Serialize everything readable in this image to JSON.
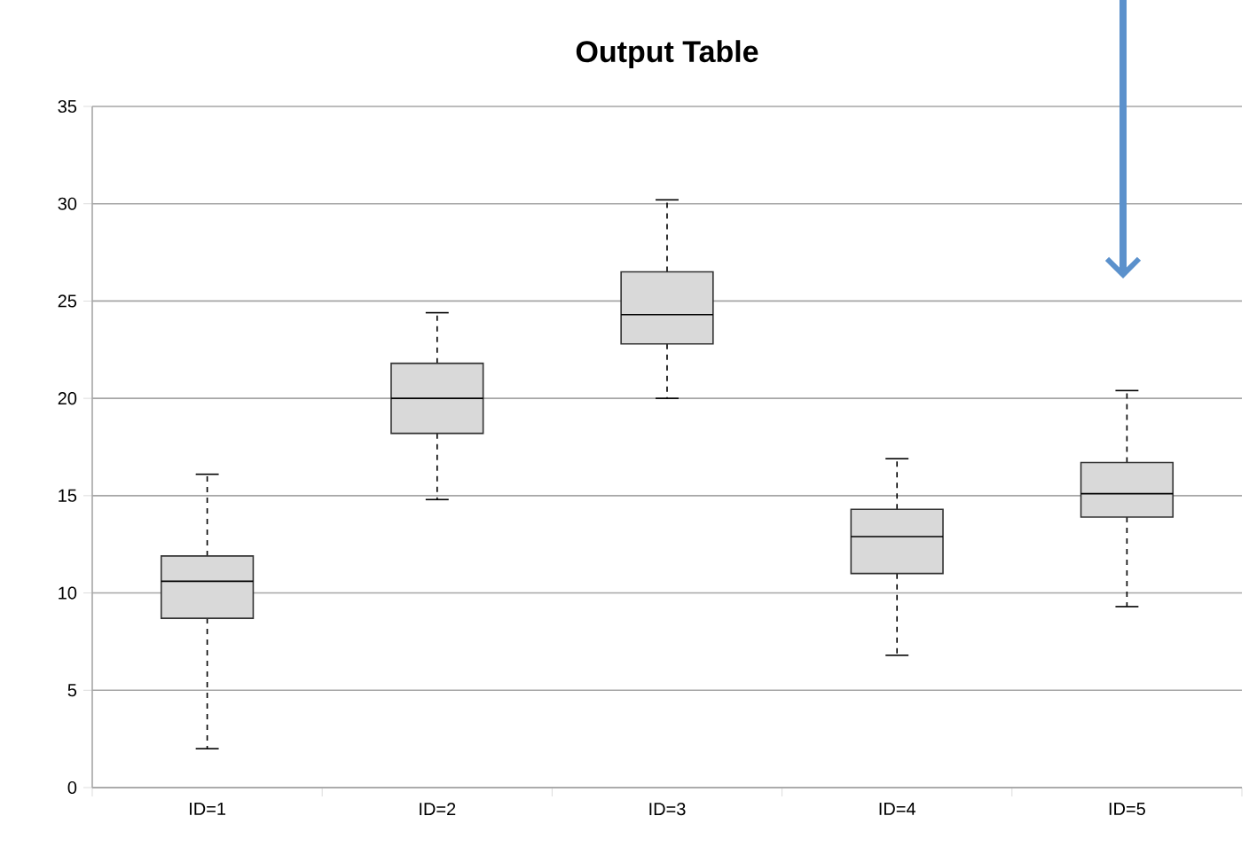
{
  "chart_data": {
    "type": "box",
    "title": "Output Table",
    "categories": [
      "ID=1",
      "ID=2",
      "ID=3",
      "ID=4",
      "ID=5"
    ],
    "boxes": [
      {
        "low": 2.0,
        "q1": 8.7,
        "median": 10.6,
        "q3": 11.9,
        "high": 16.1
      },
      {
        "low": 14.8,
        "q1": 18.2,
        "median": 20.0,
        "q3": 21.8,
        "high": 24.4
      },
      {
        "low": 20.0,
        "q1": 22.8,
        "median": 24.3,
        "q3": 26.5,
        "high": 30.2
      },
      {
        "low": 6.8,
        "q1": 11.0,
        "median": 12.9,
        "q3": 14.3,
        "high": 16.9
      },
      {
        "low": 9.3,
        "q1": 13.9,
        "median": 15.1,
        "q3": 16.7,
        "high": 20.4
      }
    ],
    "color": "#d9d9d9",
    "line_style": "dashed",
    "ylim": [
      0,
      35
    ],
    "yticks": [
      0,
      5,
      10,
      15,
      20,
      25,
      30,
      35
    ],
    "grid": "y"
  }
}
